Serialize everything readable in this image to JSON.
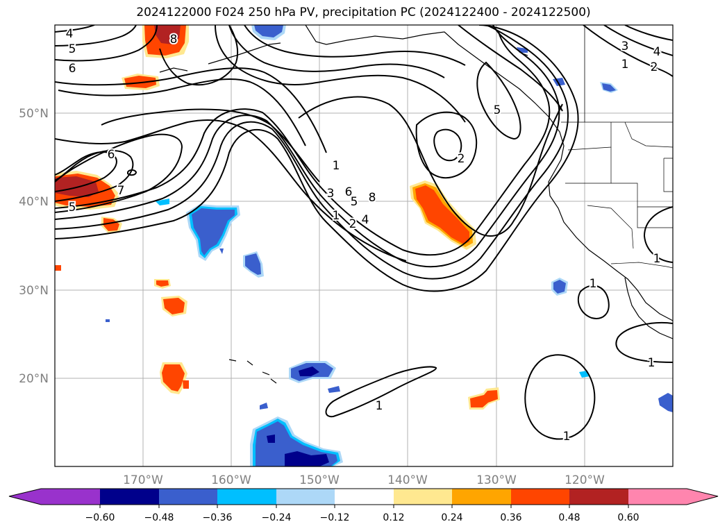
{
  "title": "2024122000 F024 250 hPa PV, precipitation PC (2024122400 - 2024122500)",
  "map": {
    "projection": "PlateCarree",
    "extent": {
      "lon_min": -180,
      "lon_max": -110,
      "lat_min": 10,
      "lat_max": 60
    },
    "gridlines": true,
    "lat_labels": [
      "50°N",
      "40°N",
      "30°N",
      "20°N"
    ],
    "lon_labels": [
      "170°W",
      "160°W",
      "150°W",
      "140°W",
      "130°W",
      "120°W"
    ],
    "contour_labels": [
      "4",
      "5",
      "6",
      "8",
      "6",
      "7",
      "5",
      "2",
      "1",
      "3",
      "6",
      "5",
      "4",
      "8",
      "1",
      "2",
      "1",
      "2",
      "4",
      "3",
      "5",
      "1",
      "1",
      "1",
      "1",
      "1"
    ]
  },
  "colorbar": {
    "ticks": [
      "−0.60",
      "−0.48",
      "−0.36",
      "−0.24",
      "−0.12",
      "0.12",
      "0.24",
      "0.36",
      "0.48",
      "0.60"
    ],
    "colors": [
      "#9932cc",
      "#00008b",
      "#3a5fcd",
      "#00bfff",
      "#add8f7",
      "#ffffff",
      "#ffe890",
      "#ffa500",
      "#ff4500",
      "#b22222",
      "#ff85ae"
    ],
    "extend": "both"
  },
  "colors": {
    "positive_precip": [
      "#ffe890",
      "#ffa500",
      "#ff4500",
      "#b22222"
    ],
    "negative_precip": [
      "#add8f7",
      "#00bfff",
      "#3a5fcd",
      "#00008b"
    ],
    "contour": "#000000",
    "grid": "#b0b0b0"
  }
}
